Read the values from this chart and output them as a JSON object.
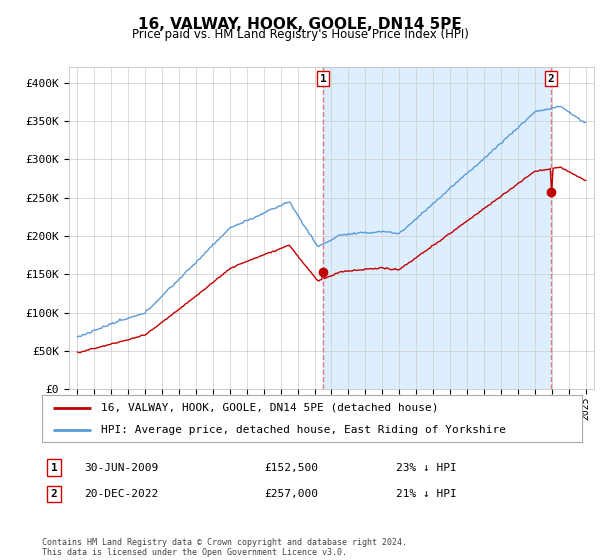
{
  "title": "16, VALWAY, HOOK, GOOLE, DN14 5PE",
  "subtitle": "Price paid vs. HM Land Registry's House Price Index (HPI)",
  "ylim": [
    0,
    420000
  ],
  "yticks": [
    0,
    50000,
    100000,
    150000,
    200000,
    250000,
    300000,
    350000,
    400000
  ],
  "ytick_labels": [
    "£0",
    "£50K",
    "£100K",
    "£150K",
    "£200K",
    "£250K",
    "£300K",
    "£350K",
    "£400K"
  ],
  "hpi_color": "#5b9bd5",
  "price_color": "#c00000",
  "vline_color": "#e07070",
  "shade_color": "#ddeeff",
  "t1": 2009.5,
  "p1": 152500,
  "t2": 2022.97,
  "p2": 257000,
  "legend_red_label": "16, VALWAY, HOOK, GOOLE, DN14 5PE (detached house)",
  "legend_blue_label": "HPI: Average price, detached house, East Riding of Yorkshire",
  "footer": "Contains HM Land Registry data © Crown copyright and database right 2024.\nThis data is licensed under the Open Government Licence v3.0.",
  "background_color": "#ffffff",
  "grid_color": "#cccccc"
}
